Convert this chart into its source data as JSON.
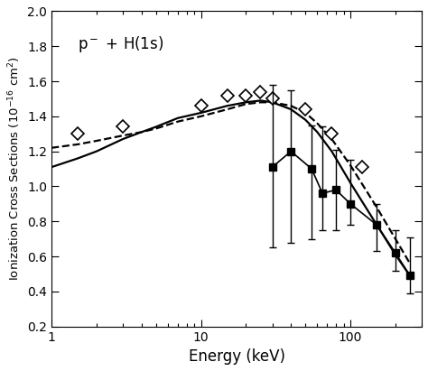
{
  "title_label": "p⁻ + H(1s)",
  "xlabel": "Energy (keV)",
  "ylabel": "Ionization Cross Sections (10$^{-16}$ cm$^2$)",
  "xlim": [
    1,
    300
  ],
  "ylim": [
    0.2,
    2.0
  ],
  "yticks": [
    0.2,
    0.4,
    0.6,
    0.8,
    1.0,
    1.2,
    1.4,
    1.6,
    1.8,
    2.0
  ],
  "diamond_x": [
    1.5,
    3.0,
    10.0,
    15.0,
    20.0,
    25.0,
    30.0,
    50.0,
    75.0,
    120.0
  ],
  "diamond_y": [
    1.3,
    1.34,
    1.46,
    1.52,
    1.52,
    1.54,
    1.5,
    1.44,
    1.3,
    1.11
  ],
  "square_x": [
    30.0,
    40.0,
    55.0,
    65.0,
    80.0,
    100.0,
    150.0,
    200.0,
    250.0
  ],
  "square_y": [
    1.11,
    1.2,
    1.1,
    0.96,
    0.98,
    0.9,
    0.78,
    0.62,
    0.49
  ],
  "square_yerr_lo": [
    0.46,
    0.52,
    0.4,
    0.21,
    0.23,
    0.12,
    0.15,
    0.1,
    0.1
  ],
  "square_yerr_hi": [
    0.47,
    0.35,
    0.25,
    0.38,
    0.23,
    0.25,
    0.12,
    0.13,
    0.22
  ],
  "solid_line_x": [
    1.0,
    1.5,
    2.0,
    3.0,
    4.0,
    5.0,
    7.0,
    10.0,
    15.0,
    20.0,
    25.0,
    30.0,
    40.0,
    50.0,
    60.0,
    75.0,
    100.0,
    150.0,
    200.0,
    250.0
  ],
  "solid_line_y": [
    1.11,
    1.16,
    1.2,
    1.27,
    1.31,
    1.34,
    1.39,
    1.42,
    1.46,
    1.48,
    1.49,
    1.48,
    1.44,
    1.38,
    1.31,
    1.2,
    1.02,
    0.78,
    0.61,
    0.49
  ],
  "dashed_line_x": [
    1.0,
    1.5,
    2.0,
    3.0,
    4.0,
    5.0,
    7.0,
    10.0,
    15.0,
    20.0,
    25.0,
    30.0,
    40.0,
    50.0,
    60.0,
    75.0,
    100.0,
    150.0,
    200.0,
    250.0
  ],
  "dashed_line_y": [
    1.22,
    1.24,
    1.26,
    1.29,
    1.31,
    1.33,
    1.37,
    1.4,
    1.44,
    1.47,
    1.48,
    1.48,
    1.46,
    1.42,
    1.36,
    1.27,
    1.12,
    0.88,
    0.7,
    0.56
  ],
  "background_color": "#ffffff",
  "line_color": "#000000",
  "figsize": [
    4.74,
    4.11
  ],
  "dpi": 100
}
